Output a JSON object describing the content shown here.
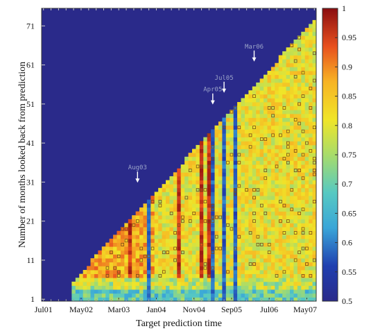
{
  "chart_data": {
    "type": "heatmap",
    "title": "",
    "xlabel": "Target prediction time",
    "ylabel": "Number of months looked back from prediction",
    "x_tick_labels": [
      "Jul01",
      "May02",
      "Mar03",
      "Jan04",
      "Nov04",
      "Sep05",
      "Jul06",
      "May07"
    ],
    "x_tick_months": [
      0,
      10,
      20,
      30,
      40,
      50,
      60,
      70
    ],
    "x_range_months": [
      0,
      72
    ],
    "y_ticks": [
      1,
      11,
      21,
      31,
      41,
      51,
      61,
      71
    ],
    "y_range": [
      1,
      75
    ],
    "colorbar": {
      "ticks": [
        0.5,
        0.55,
        0.6,
        0.65,
        0.7,
        0.75,
        0.8,
        0.85,
        0.9,
        0.95,
        1
      ],
      "tick_labels": [
        "0.5",
        "0.55",
        "0.6",
        "0.65",
        "0.7",
        "0.75",
        "0.8",
        "0.85",
        "0.9",
        "0.95",
        "1"
      ],
      "range": [
        0.5,
        1
      ],
      "colormap": "jet"
    },
    "background_value": 0.5,
    "annotations": [
      {
        "label": "Aug03",
        "month": 25,
        "lookback": 30
      },
      {
        "label": "Apr05",
        "month": 45,
        "lookback": 50
      },
      {
        "label": "Jul05",
        "month": 48,
        "lookback": 53
      },
      {
        "label": "Mar06",
        "month": 56,
        "lookback": 61
      }
    ],
    "low_value_columns": [
      28,
      45,
      48,
      51
    ],
    "high_value_columns": [
      23,
      36,
      42,
      44
    ],
    "grid": false
  }
}
